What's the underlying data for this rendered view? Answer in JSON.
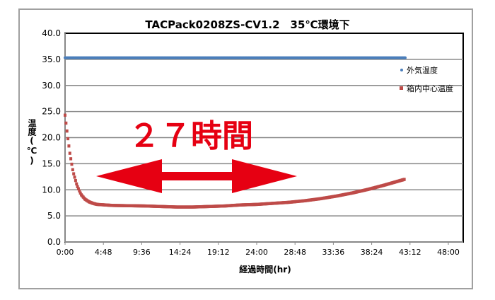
{
  "chart_data": {
    "type": "scatter",
    "title": "TACPack0208ZS-CV1.2　35℃環境下",
    "xlabel": "経過時間(hr)",
    "ylabel": "温度(℃)",
    "ylim": [
      0,
      40
    ],
    "xlim_hours": [
      0,
      48
    ],
    "y_ticks": [
      "0.0",
      "5.0",
      "10.0",
      "15.0",
      "20.0",
      "25.0",
      "30.0",
      "35.0",
      "40.0"
    ],
    "x_ticks": [
      "0:00",
      "4:48",
      "9:36",
      "14:24",
      "19:12",
      "24:00",
      "28:48",
      "33:36",
      "38:24",
      "43:12",
      "48:00"
    ],
    "grid": true,
    "legend_position": "right",
    "series": [
      {
        "name": "外気温度",
        "color": "#4a7ebb",
        "x": [
          0,
          42.6
        ],
        "y": [
          35.3,
          35.3
        ]
      },
      {
        "name": "箱内中心温度",
        "color": "#be4b48",
        "x": [
          0,
          0.3,
          0.6,
          1.0,
          1.5,
          2.0,
          2.5,
          3.0,
          3.5,
          4.0,
          5.0,
          6.0,
          8.0,
          10.0,
          12.0,
          14.0,
          16.0,
          18.0,
          20.0,
          22.0,
          24.0,
          26.0,
          28.0,
          30.0,
          32.0,
          34.0,
          36.0,
          38.0,
          40.0,
          42.5
        ],
        "y": [
          24.3,
          20.5,
          17.0,
          13.5,
          10.8,
          9.1,
          8.2,
          7.7,
          7.4,
          7.2,
          7.1,
          7.0,
          6.95,
          6.9,
          6.8,
          6.7,
          6.7,
          6.8,
          6.9,
          7.1,
          7.2,
          7.4,
          7.6,
          7.9,
          8.3,
          8.8,
          9.4,
          10.1,
          10.9,
          12.0
        ]
      }
    ],
    "annotation": {
      "text": "２７時間",
      "color": "#e60012"
    }
  }
}
